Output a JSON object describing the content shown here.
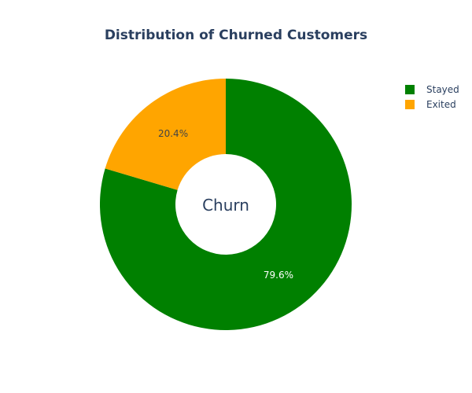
{
  "chart_data": {
    "type": "pie",
    "title": "Distribution of Churned Customers",
    "hole_text": "Churn",
    "labels": [
      "Stayed",
      "Exited"
    ],
    "values": [
      79.6,
      20.4
    ],
    "value_labels": [
      "79.6%",
      "20.4%"
    ],
    "colors": [
      "#008000",
      "#FFA500"
    ],
    "label_colors": [
      "#ffffff",
      "#444444"
    ],
    "legend_position": "top-right",
    "donut": true
  }
}
